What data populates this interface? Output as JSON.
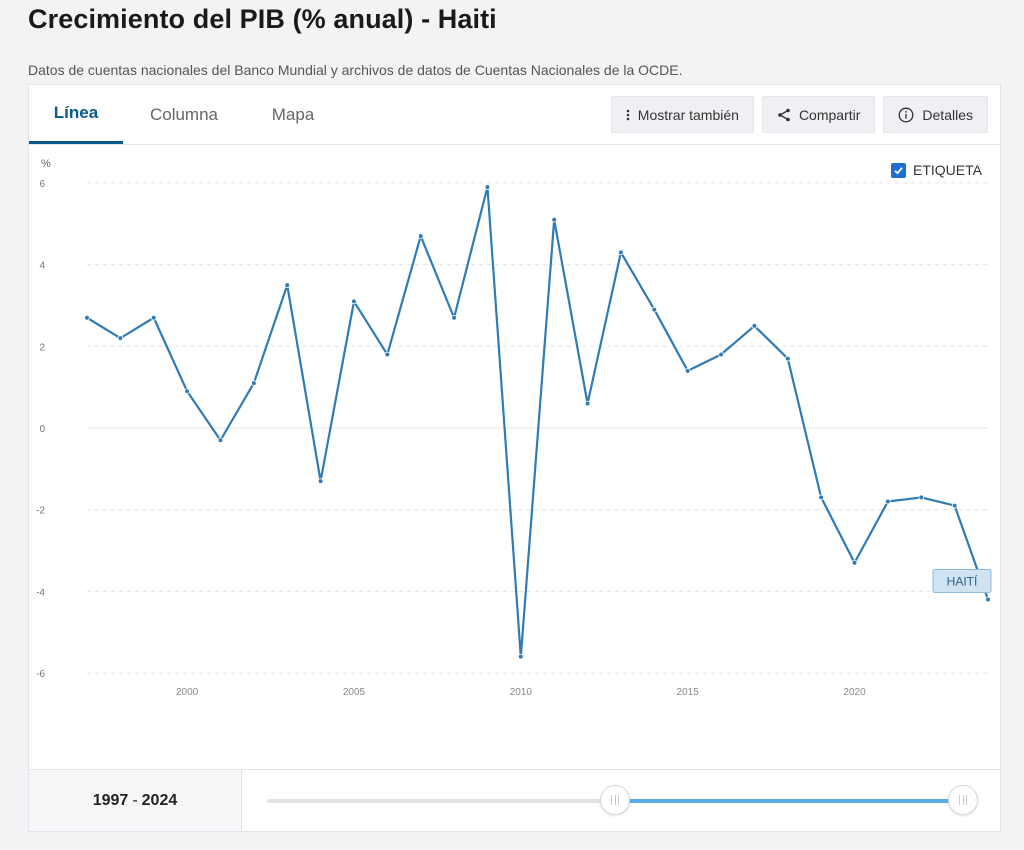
{
  "page": {
    "title": "Crecimiento del PIB (% anual) - Haiti",
    "subtitle": "Datos de cuentas nacionales del Banco Mundial y archivos de datos de Cuentas Nacionales de la OCDE."
  },
  "tabs": [
    {
      "label": "Línea",
      "active": true
    },
    {
      "label": "Columna",
      "active": false
    },
    {
      "label": "Mapa",
      "active": false
    }
  ],
  "toolbar": {
    "show_also_label": "Mostrar también",
    "share_label": "Compartir",
    "details_label": "Detalles"
  },
  "etiqueta": {
    "label": "ETIQUETA",
    "checked": true
  },
  "range": {
    "start": "1997",
    "separator": "-",
    "end": "2024",
    "low_fraction": 0.5,
    "high_fraction": 1.0
  },
  "colors": {
    "accent": "#0a5a8a",
    "line": "#2f7bb5",
    "checkbox": "#1f6fd0",
    "slider": "#5aaee8"
  },
  "chart_data": {
    "type": "line",
    "ylabel": "%",
    "ylim": [
      -6,
      6
    ],
    "yticks": [
      6,
      4,
      2,
      0,
      -2,
      -4,
      -6
    ],
    "xticks": [
      2000,
      2005,
      2010,
      2015,
      2020
    ],
    "grid": true,
    "series": [
      {
        "name": "HAITÍ",
        "x": [
          1997,
          1998,
          1999,
          2000,
          2001,
          2002,
          2003,
          2004,
          2005,
          2006,
          2007,
          2008,
          2009,
          2010,
          2011,
          2012,
          2013,
          2014,
          2015,
          2016,
          2017,
          2018,
          2019,
          2020,
          2021,
          2022,
          2023,
          2024
        ],
        "values": [
          2.7,
          2.2,
          2.7,
          0.9,
          -0.3,
          1.1,
          3.5,
          -1.3,
          3.1,
          1.8,
          4.7,
          2.7,
          5.9,
          -5.6,
          5.1,
          0.6,
          4.3,
          2.9,
          1.4,
          1.8,
          2.5,
          1.7,
          -1.7,
          -3.3,
          -1.8,
          -1.7,
          -1.9,
          -4.2
        ]
      }
    ]
  }
}
